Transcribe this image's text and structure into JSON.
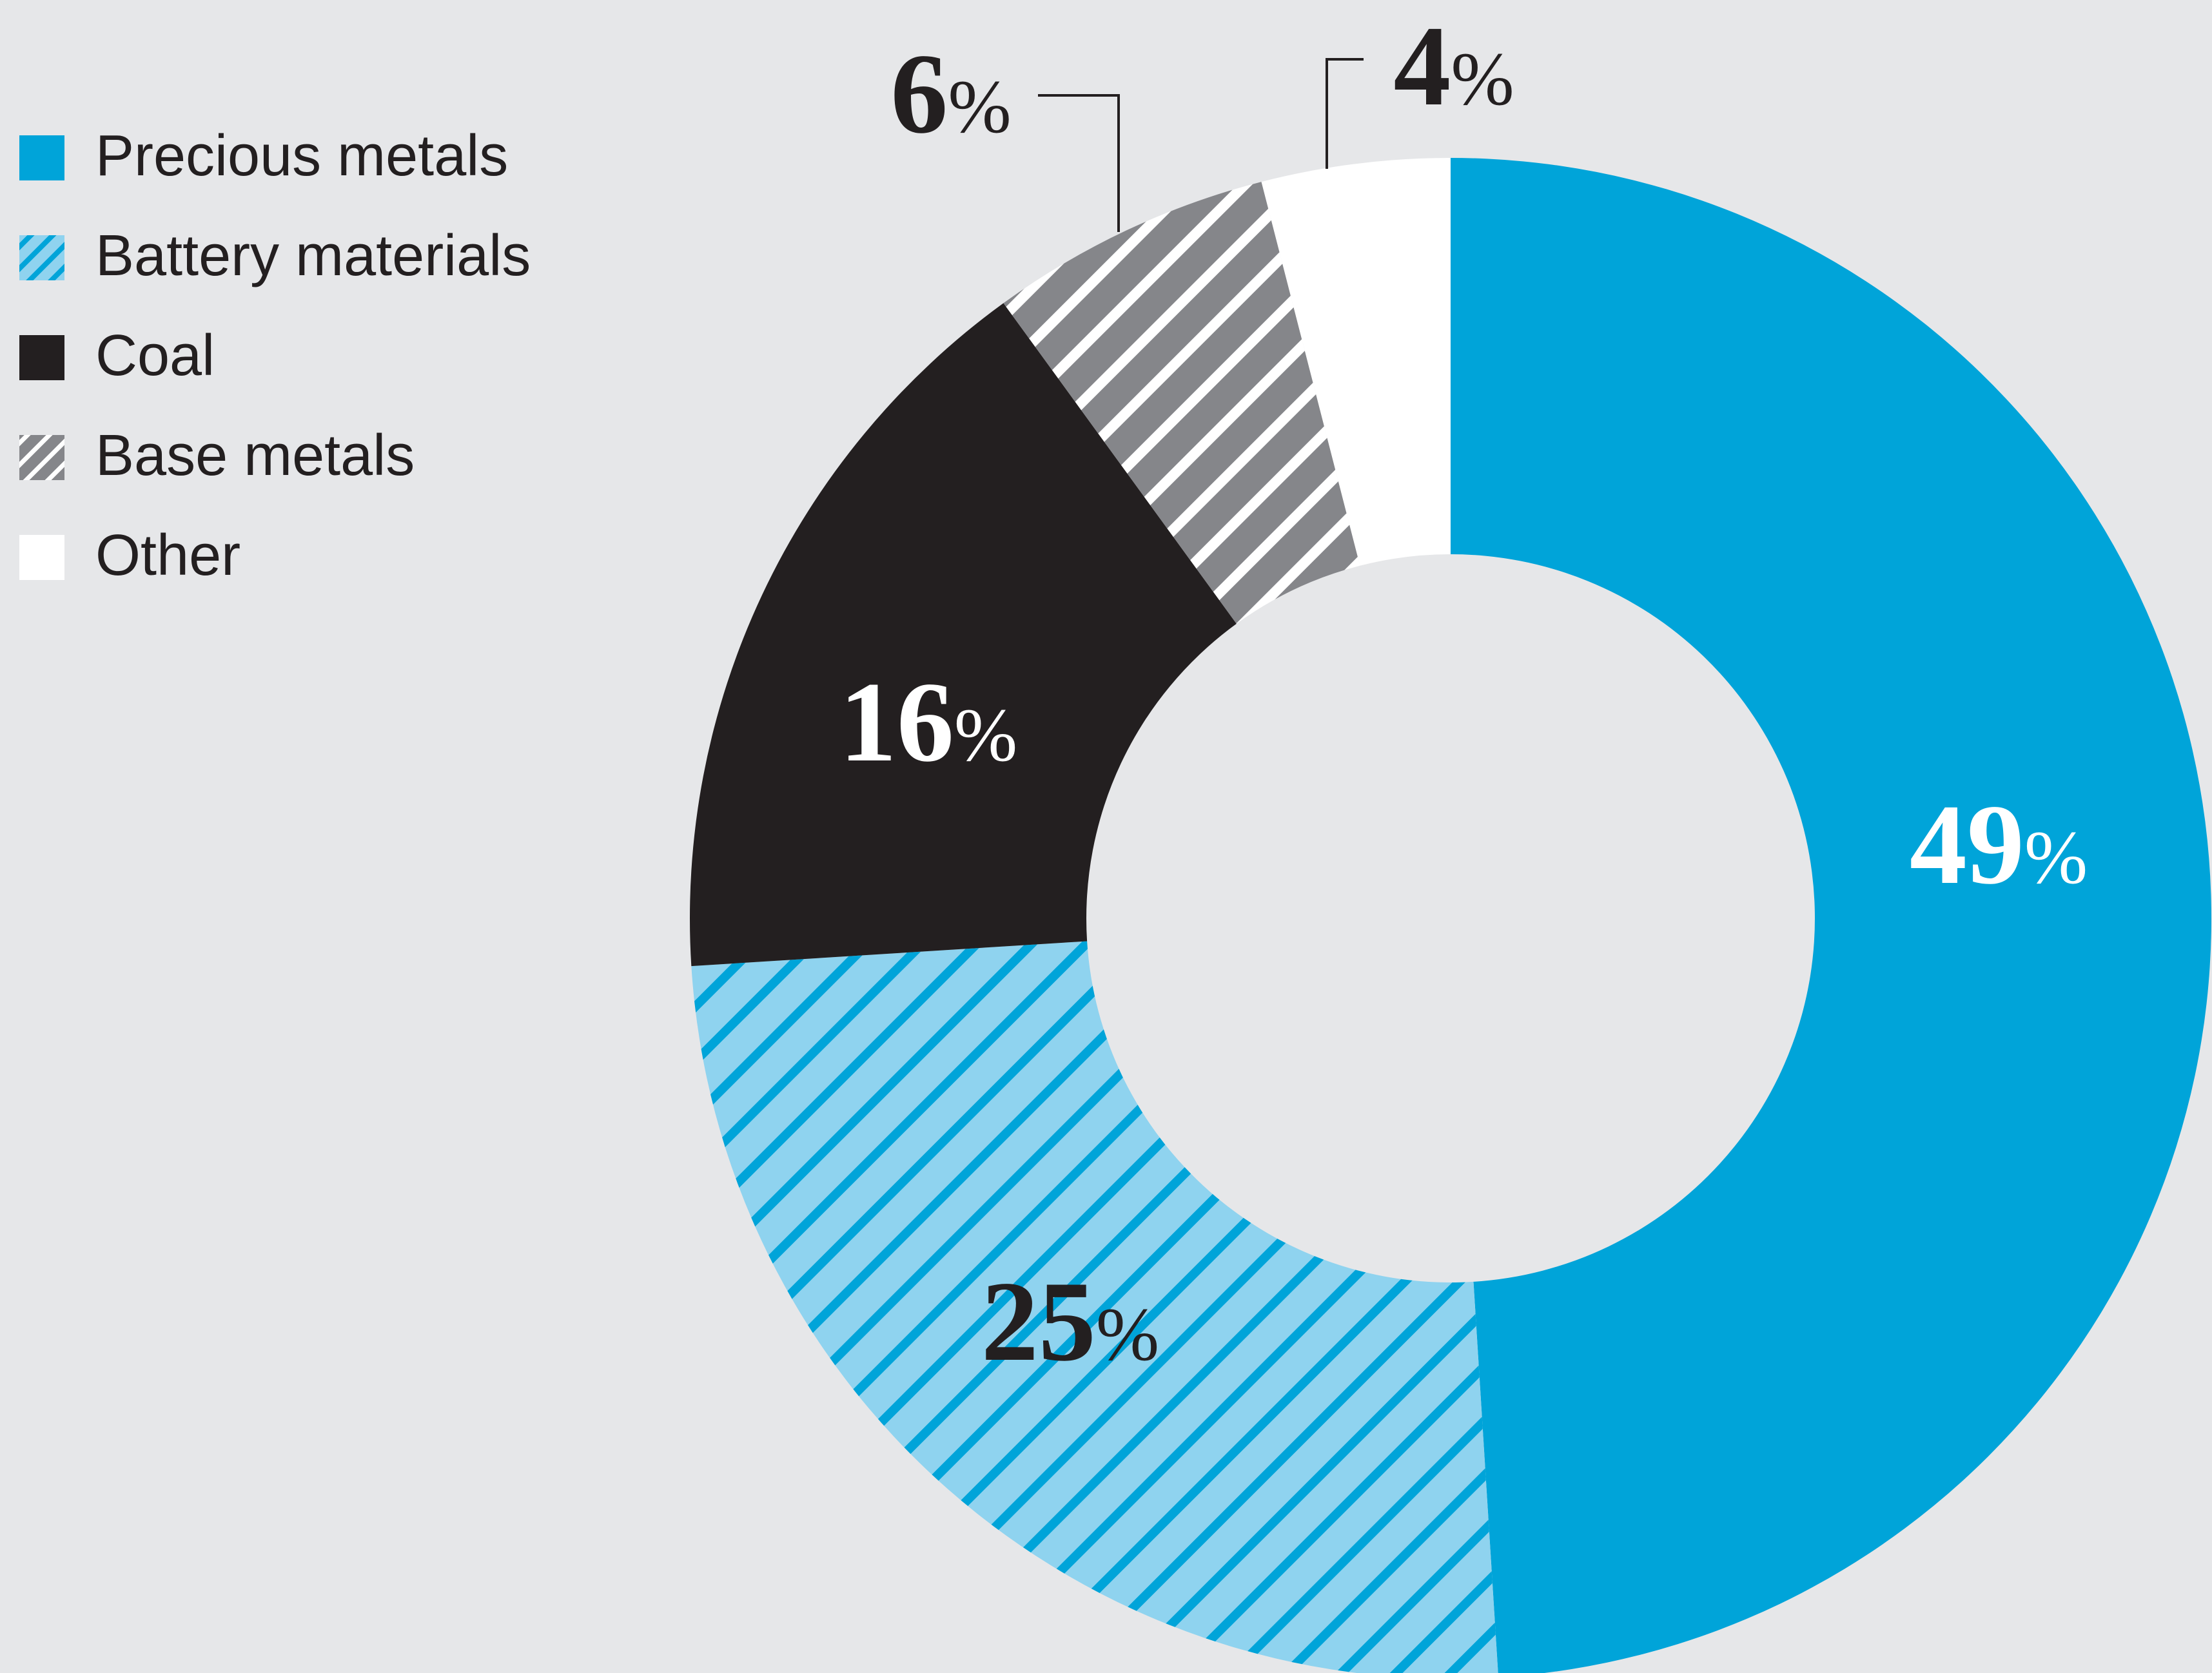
{
  "chart_data": {
    "type": "pie",
    "variant": "donut",
    "legend_position": "top-left",
    "categories": [
      "Precious metals",
      "Battery materials",
      "Coal",
      "Base metals",
      "Other"
    ],
    "values": [
      49,
      25,
      16,
      6,
      4
    ],
    "value_labels": [
      "49",
      "25",
      "16",
      "6",
      "4"
    ],
    "unit": "%",
    "colors": {
      "Precious metals": "#00a4d9",
      "Battery materials": "#8fd3ef",
      "Battery materials_stripe": "#00a4d9",
      "Coal": "#231f20",
      "Base metals": "#85868a",
      "Base metals_stripe": "#ffffff",
      "Other": "#ffffff"
    },
    "patterns": [
      "solid",
      "diagonal-stripes",
      "solid",
      "diagonal-stripes",
      "solid"
    ],
    "label_colors": [
      "#ffffff",
      "#231f20",
      "#ffffff",
      "#231f20",
      "#231f20"
    ],
    "leader_lines": [
      false,
      false,
      false,
      true,
      true
    ]
  }
}
